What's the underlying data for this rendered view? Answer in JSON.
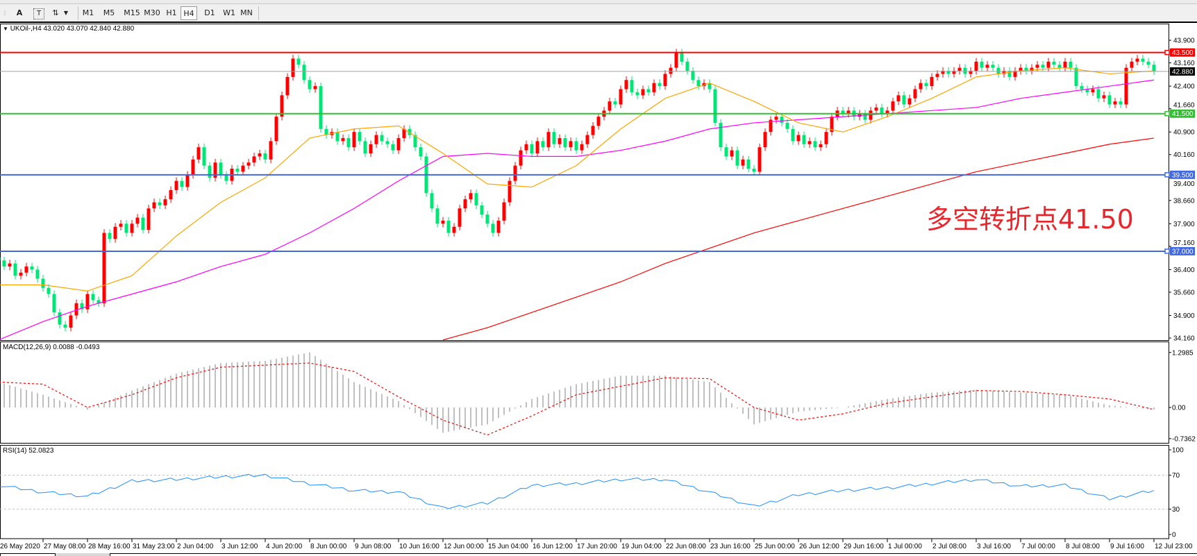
{
  "toolbar": {
    "icons": [
      "text-icon",
      "text-label-icon",
      "arrows-icon",
      "dropdown-icon"
    ],
    "text_label": "A",
    "textbox_label": "T",
    "periods": [
      "M1",
      "M5",
      "M15",
      "M30",
      "H1",
      "H4",
      "D1",
      "W1",
      "MN"
    ],
    "selected_period": "H4"
  },
  "chart": {
    "symbol_info": "UKOil-,H4  43.020 43.070 42.840 42.880",
    "annotation": "多空转折点41.50",
    "colors": {
      "bull": "#ff0000",
      "bear": "#00e676",
      "ma_fast": "#ffa500",
      "ma_mid": "#ff00ff",
      "ma_slow": "#ff0000",
      "macd_hist": "#c0c0c0",
      "macd_signal": "#ff0000",
      "rsi": "#1e90ff"
    }
  },
  "chart_data": {
    "type": "candlestick",
    "timeframe": "H4",
    "x_tick_labels": [
      "26 May 2020",
      "27 May 08:00",
      "28 May 16:00",
      "31 May 23:00",
      "2 Jun 04:00",
      "3 Jun 12:00",
      "4 Jun 20:00",
      "8 Jun 00:00",
      "9 Jun 08:00",
      "10 Jun 16:00",
      "12 Jun 00:00",
      "15 Jun 04:00",
      "16 Jun 12:00",
      "17 Jun 20:00",
      "19 Jun 04:00",
      "22 Jun 08:00",
      "23 Jun 16:00",
      "25 Jun 00:00",
      "26 Jun 12:00",
      "29 Jun 16:00",
      "1 Jul 00:00",
      "2 Jul 08:00",
      "3 Jul 16:00",
      "7 Jul 00:00",
      "8 Jul 08:00",
      "9 Jul 16:00",
      "12 Jul 23:00"
    ],
    "y_tick_labels": [
      "43.900",
      "43.160",
      "42.400",
      "41.660",
      "40.900",
      "40.160",
      "39.400",
      "38.660",
      "37.900",
      "37.160",
      "36.400",
      "35.660",
      "34.900",
      "34.160"
    ],
    "ylim": [
      34.16,
      43.9
    ],
    "closes": [
      36.7,
      36.5,
      36.6,
      36.2,
      36.3,
      36.5,
      36.4,
      36.1,
      35.8,
      35.6,
      35.0,
      34.6,
      34.5,
      34.9,
      35.3,
      35.1,
      35.6,
      35.4,
      35.3,
      37.6,
      37.4,
      37.8,
      37.9,
      37.6,
      37.9,
      38.1,
      37.7,
      38.4,
      38.6,
      38.5,
      38.7,
      39.0,
      39.3,
      39.1,
      39.5,
      40.0,
      40.4,
      39.8,
      39.4,
      39.9,
      39.5,
      39.3,
      39.7,
      39.6,
      39.8,
      39.9,
      40.1,
      40.2,
      40.0,
      40.6,
      41.4,
      42.1,
      42.7,
      43.3,
      43.1,
      42.6,
      42.3,
      42.4,
      41.0,
      40.8,
      40.9,
      40.6,
      40.7,
      40.4,
      40.9,
      40.6,
      40.2,
      40.5,
      40.8,
      40.6,
      40.5,
      40.3,
      40.7,
      41.0,
      40.8,
      40.4,
      40.1,
      38.9,
      38.4,
      37.9,
      38.0,
      37.6,
      37.8,
      38.4,
      38.7,
      38.9,
      38.5,
      38.2,
      37.9,
      37.6,
      38.0,
      38.6,
      39.3,
      39.8,
      40.3,
      40.5,
      40.2,
      40.6,
      40.4,
      40.9,
      40.5,
      40.7,
      40.4,
      40.6,
      40.3,
      40.5,
      40.8,
      41.1,
      41.4,
      41.6,
      41.9,
      41.8,
      42.3,
      42.6,
      42.2,
      42.1,
      42.3,
      42.2,
      42.5,
      42.4,
      42.8,
      43.0,
      43.5,
      43.2,
      42.9,
      42.6,
      42.4,
      42.5,
      42.3,
      41.2,
      40.4,
      40.1,
      40.3,
      39.8,
      40.0,
      39.7,
      39.6,
      40.4,
      40.9,
      41.3,
      41.4,
      41.2,
      41.0,
      40.6,
      40.8,
      40.5,
      40.6,
      40.4,
      40.5,
      40.9,
      41.4,
      41.6,
      41.5,
      41.6,
      41.4,
      41.5,
      41.3,
      41.6,
      41.7,
      41.5,
      41.6,
      41.9,
      42.1,
      41.8,
      42.0,
      42.3,
      42.5,
      42.4,
      42.7,
      42.8,
      42.9,
      42.8,
      42.9,
      43.0,
      42.8,
      42.9,
      43.2,
      43.0,
      43.1,
      43.0,
      42.8,
      42.9,
      42.7,
      42.9,
      43.0,
      42.9,
      43.0,
      43.1,
      43.0,
      43.2,
      43.1,
      43.0,
      43.2,
      43.0,
      42.4,
      42.3,
      42.2,
      42.3,
      42.0,
      42.1,
      41.8,
      41.9,
      41.8,
      43.0,
      43.2,
      43.3,
      43.2,
      43.1,
      42.88
    ],
    "moving_averages_at_ticks": {
      "fast": [
        35.9,
        35.9,
        35.7,
        36.2,
        37.5,
        38.6,
        39.4,
        40.7,
        41.0,
        41.1,
        40.2,
        39.2,
        39.1,
        39.8,
        41.0,
        42.0,
        42.5,
        41.9,
        41.2,
        40.9,
        41.4,
        42.0,
        42.7,
        42.9,
        43.0,
        42.8,
        42.9
      ],
      "mid": [
        34.1,
        34.7,
        35.2,
        35.6,
        36.0,
        36.5,
        36.9,
        37.6,
        38.4,
        39.3,
        40.1,
        40.2,
        40.1,
        40.1,
        40.3,
        40.6,
        41.0,
        41.2,
        41.3,
        41.4,
        41.5,
        41.6,
        41.7,
        42.0,
        42.2,
        42.4,
        42.6
      ],
      "slow": [
        null,
        null,
        null,
        null,
        null,
        null,
        null,
        null,
        null,
        null,
        34.1,
        34.5,
        35.0,
        35.5,
        36.0,
        36.6,
        37.1,
        37.6,
        38.0,
        38.4,
        38.8,
        39.2,
        39.6,
        39.9,
        40.2,
        40.5,
        40.7
      ]
    },
    "levels": [
      {
        "label": "43.500",
        "value": 43.5,
        "color": "#ff0000"
      },
      {
        "label": "42.880",
        "value": 42.88,
        "color": "#000000",
        "line": "#a0a0a0"
      },
      {
        "label": "41.500",
        "value": 41.5,
        "color": "#32c032"
      },
      {
        "label": "39.500",
        "value": 39.5,
        "color": "#4169e1"
      },
      {
        "label": "37.000",
        "value": 37.0,
        "color": "#4169e1"
      }
    ],
    "macd": {
      "label": "MACD(12,26,9) 0.0088 -0.0493",
      "ticks": [
        "1.2985",
        "0.00",
        "-0.7362"
      ],
      "ylim": [
        -0.7362,
        1.2985
      ],
      "hist_at_ticks": [
        0.6,
        0.3,
        -0.05,
        0.4,
        0.8,
        1.05,
        1.1,
        1.3,
        0.6,
        0.15,
        -0.6,
        -0.4,
        0.2,
        0.55,
        0.75,
        0.75,
        0.6,
        -0.4,
        -0.1,
        0.0,
        0.2,
        0.35,
        0.42,
        0.35,
        0.3,
        0.05,
        -0.05
      ],
      "signal_at_ticks": [
        0.6,
        0.55,
        0.0,
        0.3,
        0.7,
        0.95,
        1.0,
        1.05,
        0.85,
        0.25,
        -0.3,
        -0.65,
        -0.2,
        0.3,
        0.5,
        0.7,
        0.68,
        0.0,
        -0.3,
        -0.15,
        0.1,
        0.25,
        0.4,
        0.38,
        0.3,
        0.2,
        -0.05
      ]
    },
    "rsi": {
      "label": "RSI(14) 52.0823",
      "ticks": [
        "100",
        "70",
        "30",
        "0"
      ],
      "ylim": [
        0,
        100
      ],
      "at_ticks": [
        58,
        50,
        45,
        63,
        65,
        68,
        70,
        60,
        52,
        50,
        31,
        37,
        58,
        60,
        65,
        65,
        50,
        33,
        47,
        52,
        55,
        60,
        65,
        57,
        58,
        42,
        52
      ]
    }
  }
}
